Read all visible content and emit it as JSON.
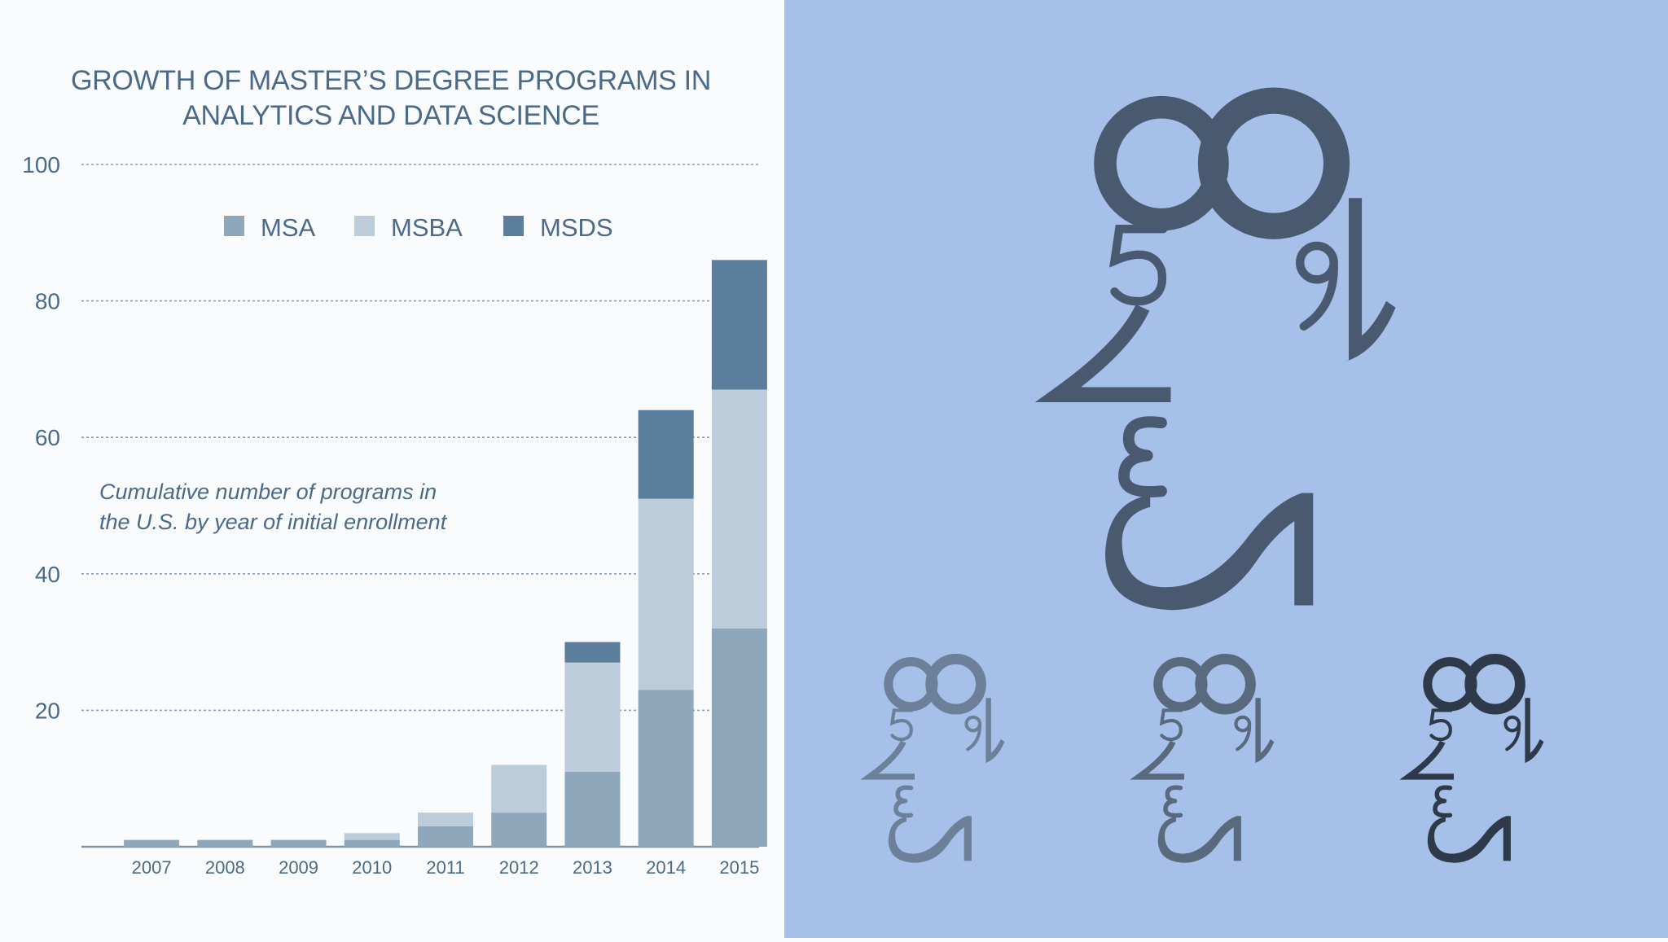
{
  "chart_data": {
    "type": "bar",
    "stacked": true,
    "title": "GROWTH OF MASTER'S DEGREE PROGRAMS IN ANALYTICS AND DATA SCIENCE",
    "title_lines": [
      "GROWTH OF MASTER’S DEGREE PROGRAMS IN",
      "ANALYTICS AND DATA SCIENCE"
    ],
    "annotation_lines": [
      "Cumulative number of programs in",
      "the U.S. by year of initial enrollment"
    ],
    "categories": [
      "2007",
      "2008",
      "2009",
      "2010",
      "2011",
      "2012",
      "2013",
      "2014",
      "2015"
    ],
    "series": [
      {
        "name": "MSA",
        "color": "#8fa7ba",
        "values": [
          1,
          1,
          1,
          1,
          3,
          5,
          11,
          23,
          32
        ]
      },
      {
        "name": "MSBA",
        "color": "#bdccda",
        "values": [
          0,
          0,
          0,
          1,
          2,
          7,
          16,
          28,
          35
        ]
      },
      {
        "name": "MSDS",
        "color": "#5a7e9c",
        "values": [
          0,
          0,
          0,
          0,
          0,
          0,
          3,
          13,
          19
        ]
      }
    ],
    "ylim": [
      0,
      100
    ],
    "yticks": [
      20,
      40,
      60,
      80,
      100
    ],
    "grid": true,
    "legend": "top-center",
    "xlabel": "",
    "ylabel": ""
  },
  "right_panel": {
    "background": "#a6c0ea",
    "large_figure_color": "#495a70",
    "small_figure_colors": [
      "#6d8099",
      "#59697e",
      "#2e3a4a"
    ]
  }
}
